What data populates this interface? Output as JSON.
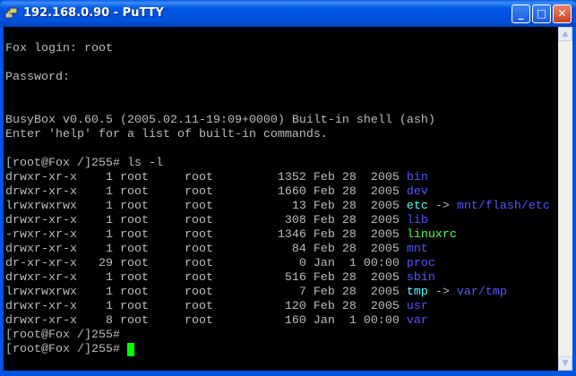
{
  "window": {
    "title": "192.168.0.90 - PuTTY",
    "buttons": {
      "minimize": "_",
      "maximize": "□",
      "close": "✕"
    },
    "icons": [
      "putty-icon",
      "scroll-up-arrow-icon",
      "scroll-down-arrow-icon"
    ]
  },
  "colors": {
    "default": "#bbbbbb",
    "directory": "#5555ff",
    "link": "#55ffff",
    "executable": "#55ff55",
    "cursor": "#00ff00"
  },
  "terminal": {
    "lines": [
      [],
      [
        {
          "t": "Fox login: root"
        }
      ],
      [],
      [
        {
          "t": "Password:"
        }
      ],
      [],
      [],
      [
        {
          "t": "BusyBox v0.60.5 (2005.02.11-19:09+0000) Built-in shell (ash)"
        }
      ],
      [
        {
          "t": "Enter 'help' for a list of built-in commands."
        }
      ],
      [],
      [
        {
          "t": "[root@Fox /]255# ls -l"
        }
      ],
      [
        {
          "t": "drwxr-xr-x    1 root     root         1352 Feb 28  2005 "
        },
        {
          "t": "bin",
          "c": "directory"
        }
      ],
      [
        {
          "t": "drwxr-xr-x    1 root     root         1660 Feb 28  2005 "
        },
        {
          "t": "dev",
          "c": "directory"
        }
      ],
      [
        {
          "t": "lrwxrwxrwx    1 root     root           13 Feb 28  2005 "
        },
        {
          "t": "etc",
          "c": "link"
        },
        {
          "t": " -> "
        },
        {
          "t": "mnt/flash/etc",
          "c": "directory"
        }
      ],
      [
        {
          "t": "drwxr-xr-x    1 root     root          308 Feb 28  2005 "
        },
        {
          "t": "lib",
          "c": "directory"
        }
      ],
      [
        {
          "t": "-rwxr-xr-x    1 root     root         1346 Feb 28  2005 "
        },
        {
          "t": "linuxrc",
          "c": "executable"
        }
      ],
      [
        {
          "t": "drwxr-xr-x    1 root     root           84 Feb 28  2005 "
        },
        {
          "t": "mnt",
          "c": "directory"
        }
      ],
      [
        {
          "t": "dr-xr-xr-x   29 root     root            0 Jan  1 00:00 "
        },
        {
          "t": "proc",
          "c": "directory"
        }
      ],
      [
        {
          "t": "drwxr-xr-x    1 root     root          516 Feb 28  2005 "
        },
        {
          "t": "sbin",
          "c": "directory"
        }
      ],
      [
        {
          "t": "lrwxrwxrwx    1 root     root            7 Feb 28  2005 "
        },
        {
          "t": "tmp",
          "c": "link"
        },
        {
          "t": " -> "
        },
        {
          "t": "var/tmp",
          "c": "directory"
        }
      ],
      [
        {
          "t": "drwxr-xr-x    1 root     root          120 Feb 28  2005 "
        },
        {
          "t": "usr",
          "c": "directory"
        }
      ],
      [
        {
          "t": "drwxr-xr-x    8 root     root          160 Jan  1 00:00 "
        },
        {
          "t": "var",
          "c": "directory"
        }
      ],
      [
        {
          "t": "[root@Fox /]255#"
        }
      ],
      [
        {
          "t": "[root@Fox /]255# "
        },
        {
          "t": " ",
          "c": "cursor"
        }
      ]
    ]
  }
}
